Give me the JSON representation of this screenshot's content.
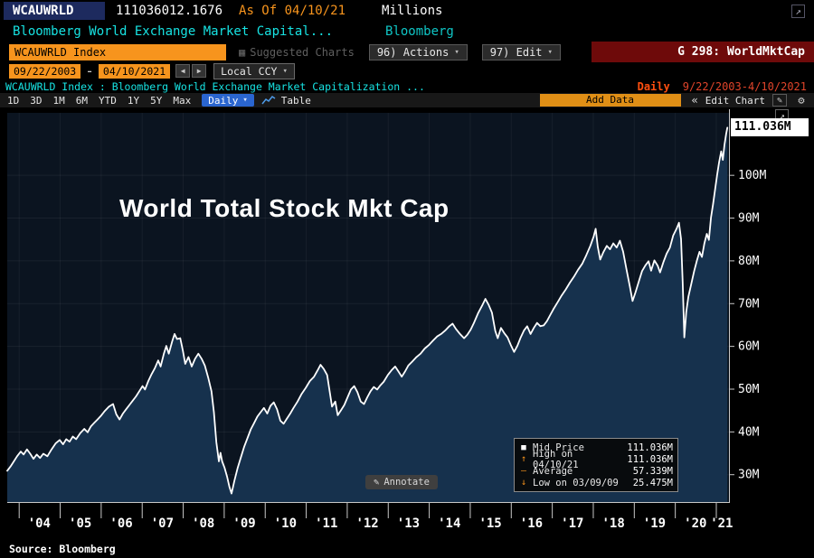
{
  "icons": {
    "popout": "↗",
    "expand": "↗",
    "caret_down": "▾",
    "prev": "◀",
    "next": "▶",
    "collapse": "«",
    "pencil": "✎",
    "gear": "⚙",
    "grid": "▦",
    "annotate": "✎"
  },
  "top_bar": {
    "ticker": "WCAUWRLD",
    "last_value": "111036012.1676",
    "as_of": "As Of 04/10/21",
    "units": "Millions",
    "description": "Bloomberg World Exchange Market Capital...",
    "vendor": "Bloomberg"
  },
  "menu_bar": {
    "security_field": "WCAUWRLD Index",
    "suggested_charts": "Suggested Charts",
    "actions": "96) Actions",
    "edit": "97) Edit",
    "function_tag": "G 298: WorldMktCap"
  },
  "range_bar": {
    "start_date": "09/22/2003",
    "separator": "-",
    "end_date": "04/10/2021",
    "currency": "Local CCY"
  },
  "chart_header": {
    "title": "WCAUWRLD Index : Bloomberg World Exchange Market Capitalization ...",
    "frequency": "Daily",
    "range": "9/22/2003-4/10/2021"
  },
  "chart_toolbar": {
    "tabs": [
      "1D",
      "3D",
      "1M",
      "6M",
      "YTD",
      "1Y",
      "5Y",
      "Max"
    ],
    "periodicity": "Daily",
    "table_label": "Table",
    "add_data_label": "Add Data",
    "edit_chart_label": "Edit Chart"
  },
  "chart_data": {
    "type": "area",
    "title": "World Total Stock Mkt Cap",
    "x_domain": [
      2003.72,
      2021.32
    ],
    "y_domain": [
      23.5,
      114.5
    ],
    "y_ticks": [
      30,
      40,
      50,
      60,
      70,
      80,
      90,
      100
    ],
    "y_tick_suffix": "M",
    "x_tick_years": [
      2004,
      2005,
      2006,
      2007,
      2008,
      2009,
      2010,
      2011,
      2012,
      2013,
      2014,
      2015,
      2016,
      2017,
      2018,
      2019,
      2020,
      2021
    ],
    "x_tick_labels": [
      "'04",
      "'05",
      "'06",
      "'07",
      "'08",
      "'09",
      "'10",
      "'11",
      "'12",
      "'13",
      "'14",
      "'15",
      "'16",
      "'17",
      "'18",
      "'19",
      "'20",
      "'21"
    ],
    "last_value": 111.036,
    "last_value_label": "111.036M",
    "grid": "faint",
    "legend_position": "bottom-right",
    "colors": {
      "line": "#ffffff",
      "area": "#16314d",
      "plot_bg": "#0b1420",
      "axis": "#c8c8c8"
    },
    "series": [
      {
        "name": "Mid Price",
        "points": [
          [
            2003.72,
            30.8
          ],
          [
            2003.8,
            31.8
          ],
          [
            2003.88,
            33.0
          ],
          [
            2003.96,
            34.2
          ],
          [
            2004.05,
            35.3
          ],
          [
            2004.12,
            34.6
          ],
          [
            2004.2,
            35.8
          ],
          [
            2004.28,
            34.8
          ],
          [
            2004.36,
            33.6
          ],
          [
            2004.44,
            34.6
          ],
          [
            2004.52,
            33.8
          ],
          [
            2004.6,
            34.8
          ],
          [
            2004.7,
            34.2
          ],
          [
            2004.8,
            35.8
          ],
          [
            2004.9,
            37.2
          ],
          [
            2005.0,
            38.0
          ],
          [
            2005.08,
            37.0
          ],
          [
            2005.16,
            38.2
          ],
          [
            2005.24,
            37.6
          ],
          [
            2005.32,
            38.8
          ],
          [
            2005.4,
            38.2
          ],
          [
            2005.5,
            39.6
          ],
          [
            2005.6,
            40.6
          ],
          [
            2005.68,
            39.8
          ],
          [
            2005.76,
            41.2
          ],
          [
            2005.84,
            42.0
          ],
          [
            2005.92,
            42.8
          ],
          [
            2006.0,
            43.6
          ],
          [
            2006.1,
            44.8
          ],
          [
            2006.2,
            45.8
          ],
          [
            2006.3,
            46.4
          ],
          [
            2006.38,
            44.0
          ],
          [
            2006.46,
            42.8
          ],
          [
            2006.54,
            44.2
          ],
          [
            2006.62,
            45.2
          ],
          [
            2006.7,
            46.2
          ],
          [
            2006.78,
            47.2
          ],
          [
            2006.86,
            48.2
          ],
          [
            2006.94,
            49.4
          ],
          [
            2007.02,
            50.6
          ],
          [
            2007.08,
            49.8
          ],
          [
            2007.16,
            51.8
          ],
          [
            2007.24,
            53.4
          ],
          [
            2007.32,
            54.8
          ],
          [
            2007.4,
            56.6
          ],
          [
            2007.46,
            55.2
          ],
          [
            2007.54,
            58.2
          ],
          [
            2007.6,
            60.0
          ],
          [
            2007.66,
            58.2
          ],
          [
            2007.74,
            61.0
          ],
          [
            2007.8,
            62.8
          ],
          [
            2007.86,
            61.6
          ],
          [
            2007.94,
            61.8
          ],
          [
            2008.0,
            59.0
          ],
          [
            2008.06,
            55.8
          ],
          [
            2008.14,
            57.4
          ],
          [
            2008.22,
            55.2
          ],
          [
            2008.3,
            57.0
          ],
          [
            2008.38,
            58.2
          ],
          [
            2008.46,
            57.0
          ],
          [
            2008.54,
            55.4
          ],
          [
            2008.62,
            52.6
          ],
          [
            2008.7,
            49.4
          ],
          [
            2008.76,
            44.5
          ],
          [
            2008.82,
            37.5
          ],
          [
            2008.88,
            33.0
          ],
          [
            2008.92,
            35.0
          ],
          [
            2008.96,
            33.0
          ],
          [
            2009.02,
            31.5
          ],
          [
            2009.08,
            29.5
          ],
          [
            2009.14,
            27.0
          ],
          [
            2009.19,
            25.475
          ],
          [
            2009.26,
            28.5
          ],
          [
            2009.34,
            31.5
          ],
          [
            2009.42,
            34.0
          ],
          [
            2009.5,
            36.5
          ],
          [
            2009.58,
            38.5
          ],
          [
            2009.66,
            40.5
          ],
          [
            2009.74,
            42.0
          ],
          [
            2009.82,
            43.5
          ],
          [
            2009.9,
            44.5
          ],
          [
            2009.98,
            45.5
          ],
          [
            2010.06,
            44.2
          ],
          [
            2010.14,
            46.0
          ],
          [
            2010.22,
            46.8
          ],
          [
            2010.3,
            45.2
          ],
          [
            2010.38,
            42.5
          ],
          [
            2010.46,
            41.8
          ],
          [
            2010.54,
            43.0
          ],
          [
            2010.62,
            44.2
          ],
          [
            2010.7,
            45.5
          ],
          [
            2010.8,
            47.0
          ],
          [
            2010.9,
            48.8
          ],
          [
            2011.0,
            50.2
          ],
          [
            2011.1,
            51.8
          ],
          [
            2011.2,
            52.8
          ],
          [
            2011.3,
            54.5
          ],
          [
            2011.36,
            55.6
          ],
          [
            2011.44,
            54.6
          ],
          [
            2011.52,
            53.2
          ],
          [
            2011.58,
            49.5
          ],
          [
            2011.64,
            45.8
          ],
          [
            2011.72,
            47.0
          ],
          [
            2011.78,
            43.8
          ],
          [
            2011.86,
            45.0
          ],
          [
            2011.94,
            46.2
          ],
          [
            2012.02,
            48.0
          ],
          [
            2012.1,
            49.8
          ],
          [
            2012.18,
            50.6
          ],
          [
            2012.26,
            49.2
          ],
          [
            2012.34,
            47.0
          ],
          [
            2012.42,
            46.4
          ],
          [
            2012.5,
            48.0
          ],
          [
            2012.58,
            49.4
          ],
          [
            2012.66,
            50.4
          ],
          [
            2012.74,
            49.8
          ],
          [
            2012.82,
            50.8
          ],
          [
            2012.9,
            51.6
          ],
          [
            2013.0,
            53.2
          ],
          [
            2013.1,
            54.4
          ],
          [
            2013.18,
            55.2
          ],
          [
            2013.26,
            54.0
          ],
          [
            2013.34,
            52.8
          ],
          [
            2013.42,
            54.0
          ],
          [
            2013.5,
            55.4
          ],
          [
            2013.6,
            56.4
          ],
          [
            2013.7,
            57.4
          ],
          [
            2013.8,
            58.2
          ],
          [
            2013.9,
            59.4
          ],
          [
            2014.0,
            60.2
          ],
          [
            2014.1,
            61.2
          ],
          [
            2014.2,
            62.2
          ],
          [
            2014.3,
            62.8
          ],
          [
            2014.4,
            63.6
          ],
          [
            2014.5,
            64.6
          ],
          [
            2014.58,
            65.2
          ],
          [
            2014.66,
            64.0
          ],
          [
            2014.76,
            62.8
          ],
          [
            2014.86,
            61.8
          ],
          [
            2014.94,
            62.6
          ],
          [
            2015.02,
            63.8
          ],
          [
            2015.1,
            65.4
          ],
          [
            2015.2,
            67.6
          ],
          [
            2015.3,
            69.4
          ],
          [
            2015.38,
            71.0
          ],
          [
            2015.46,
            69.6
          ],
          [
            2015.54,
            67.8
          ],
          [
            2015.62,
            63.5
          ],
          [
            2015.68,
            61.8
          ],
          [
            2015.76,
            64.2
          ],
          [
            2015.84,
            63.0
          ],
          [
            2015.92,
            62.0
          ],
          [
            2016.0,
            60.2
          ],
          [
            2016.08,
            58.6
          ],
          [
            2016.16,
            60.0
          ],
          [
            2016.24,
            62.0
          ],
          [
            2016.32,
            63.6
          ],
          [
            2016.4,
            64.6
          ],
          [
            2016.48,
            62.8
          ],
          [
            2016.56,
            64.2
          ],
          [
            2016.64,
            65.4
          ],
          [
            2016.72,
            64.6
          ],
          [
            2016.8,
            64.8
          ],
          [
            2016.88,
            65.8
          ],
          [
            2016.96,
            67.2
          ],
          [
            2017.04,
            68.6
          ],
          [
            2017.14,
            70.2
          ],
          [
            2017.24,
            71.8
          ],
          [
            2017.34,
            73.2
          ],
          [
            2017.44,
            74.8
          ],
          [
            2017.54,
            76.2
          ],
          [
            2017.64,
            77.8
          ],
          [
            2017.74,
            79.2
          ],
          [
            2017.84,
            81.2
          ],
          [
            2017.94,
            83.4
          ],
          [
            2018.02,
            85.6
          ],
          [
            2018.07,
            87.4
          ],
          [
            2018.12,
            83.2
          ],
          [
            2018.18,
            80.2
          ],
          [
            2018.26,
            82.0
          ],
          [
            2018.34,
            83.4
          ],
          [
            2018.42,
            82.6
          ],
          [
            2018.5,
            84.0
          ],
          [
            2018.58,
            83.0
          ],
          [
            2018.66,
            84.6
          ],
          [
            2018.74,
            82.0
          ],
          [
            2018.82,
            78.0
          ],
          [
            2018.9,
            74.0
          ],
          [
            2018.97,
            70.5
          ],
          [
            2019.04,
            72.5
          ],
          [
            2019.12,
            75.0
          ],
          [
            2019.2,
            77.5
          ],
          [
            2019.28,
            78.8
          ],
          [
            2019.36,
            79.8
          ],
          [
            2019.42,
            77.6
          ],
          [
            2019.5,
            80.0
          ],
          [
            2019.58,
            78.8
          ],
          [
            2019.64,
            77.2
          ],
          [
            2019.72,
            79.6
          ],
          [
            2019.8,
            81.6
          ],
          [
            2019.88,
            83.0
          ],
          [
            2019.96,
            85.8
          ],
          [
            2020.04,
            87.4
          ],
          [
            2020.1,
            88.8
          ],
          [
            2020.15,
            85.0
          ],
          [
            2020.19,
            75.0
          ],
          [
            2020.23,
            62.0
          ],
          [
            2020.28,
            68.0
          ],
          [
            2020.33,
            71.5
          ],
          [
            2020.4,
            74.5
          ],
          [
            2020.47,
            77.5
          ],
          [
            2020.54,
            80.0
          ],
          [
            2020.6,
            82.0
          ],
          [
            2020.66,
            80.8
          ],
          [
            2020.72,
            84.0
          ],
          [
            2020.78,
            86.2
          ],
          [
            2020.83,
            84.8
          ],
          [
            2020.88,
            90.0
          ],
          [
            2020.93,
            93.0
          ],
          [
            2020.98,
            96.5
          ],
          [
            2021.03,
            100.0
          ],
          [
            2021.08,
            103.0
          ],
          [
            2021.13,
            105.5
          ],
          [
            2021.17,
            103.5
          ],
          [
            2021.21,
            107.0
          ],
          [
            2021.25,
            109.5
          ],
          [
            2021.28,
            111.036
          ]
        ]
      }
    ]
  },
  "legend": {
    "rows": [
      {
        "marker": "■",
        "label": "Mid Price",
        "value": "111.036M"
      },
      {
        "marker": "↑",
        "label": "High on 04/10/21",
        "value": "111.036M"
      },
      {
        "marker": "—",
        "label": "Average",
        "value": "57.339M"
      },
      {
        "marker": "↓",
        "label": "Low on 03/09/09",
        "value": "25.475M"
      }
    ]
  },
  "annotate_label": "Annotate",
  "source": "Source: Bloomberg"
}
